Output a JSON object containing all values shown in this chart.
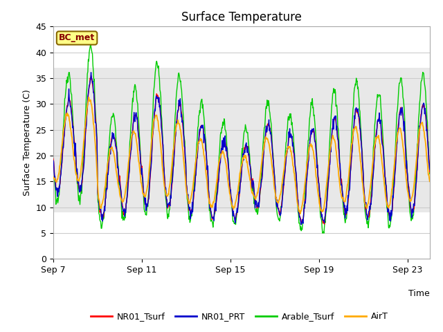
{
  "title": "Surface Temperature",
  "ylabel": "Surface Temperature (C)",
  "xlabel": "Time",
  "location_label": "BC_met",
  "ylim": [
    0,
    45
  ],
  "yticks": [
    0,
    5,
    10,
    15,
    20,
    25,
    30,
    35,
    40,
    45
  ],
  "xtick_labels": [
    "Sep 7",
    "Sep 11",
    "Sep 15",
    "Sep 19",
    "Sep 23"
  ],
  "xtick_positions": [
    0,
    4,
    8,
    12,
    16
  ],
  "series_colors": {
    "NR01_Tsurf": "#ff0000",
    "NR01_PRT": "#0000cc",
    "Arable_Tsurf": "#00cc00",
    "AirT": "#ffaa00"
  },
  "series_names": [
    "NR01_Tsurf",
    "NR01_PRT",
    "Arable_Tsurf",
    "AirT"
  ],
  "fig_bg_color": "#ffffff",
  "plot_bg_color": "#ffffff",
  "shaded_band_color": "#e8e8e8",
  "shaded_band_ymin": 9,
  "shaded_band_ymax": 37,
  "grid_color": "#d8d8d8",
  "title_fontsize": 12,
  "label_fontsize": 9,
  "tick_fontsize": 9,
  "n_days": 17,
  "pts_per_day": 48
}
